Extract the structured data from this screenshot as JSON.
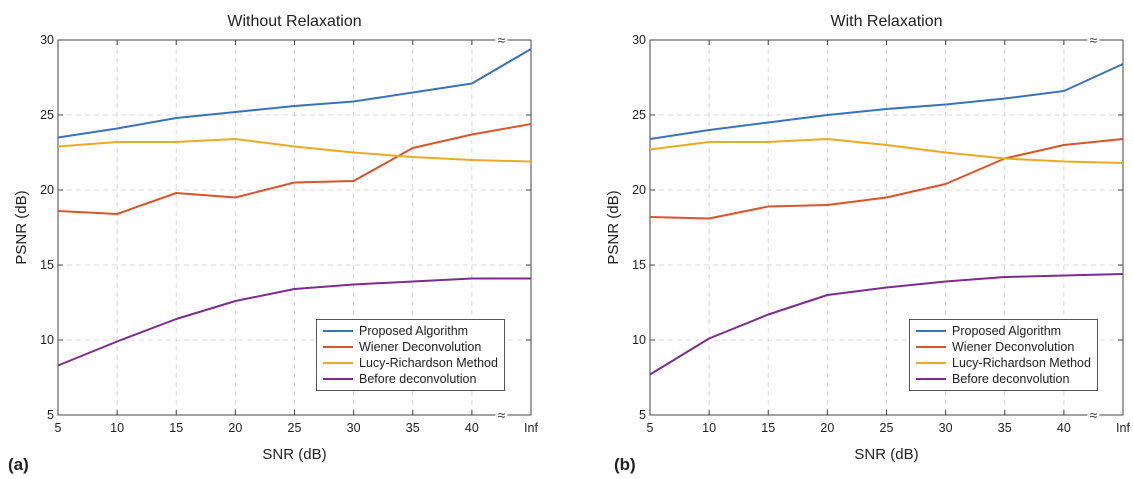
{
  "chart_data": [
    {
      "type": "line",
      "panel_label": "(a)",
      "title": "Without Relaxation",
      "xlabel": "SNR (dB)",
      "ylabel": "PSNR (dB)",
      "categories": [
        "5",
        "10",
        "15",
        "20",
        "25",
        "30",
        "35",
        "40",
        "Inf"
      ],
      "ylim": [
        5,
        30
      ],
      "yticks": [
        "5",
        "10",
        "15",
        "20",
        "25",
        "30"
      ],
      "grid": true,
      "axis_break_marker": "≈",
      "legend_position": "bottom-right",
      "series": [
        {
          "name": "Proposed Algorithm",
          "color": "#3a73b9",
          "values": [
            23.5,
            24.1,
            24.8,
            25.2,
            25.6,
            25.9,
            26.5,
            27.1,
            29.4
          ]
        },
        {
          "name": "Wiener Deconvolution",
          "color": "#d9532b",
          "values": [
            18.6,
            18.4,
            19.8,
            19.5,
            20.5,
            20.6,
            22.8,
            23.7,
            24.4
          ]
        },
        {
          "name": "Lucy-Richardson Method",
          "color": "#ebaa25",
          "values": [
            22.9,
            23.2,
            23.2,
            23.4,
            22.9,
            22.5,
            22.2,
            22.0,
            21.9
          ]
        },
        {
          "name": "Before deconvolution",
          "color": "#7b2c8f",
          "values": [
            8.3,
            9.9,
            11.4,
            12.6,
            13.4,
            13.7,
            13.9,
            14.1,
            14.1
          ]
        }
      ]
    },
    {
      "type": "line",
      "panel_label": "(b)",
      "title": "With Relaxation",
      "xlabel": "SNR (dB)",
      "ylabel": "PSNR (dB)",
      "categories": [
        "5",
        "10",
        "15",
        "20",
        "25",
        "30",
        "35",
        "40",
        "Inf"
      ],
      "ylim": [
        5,
        30
      ],
      "yticks": [
        "5",
        "10",
        "15",
        "20",
        "25",
        "30"
      ],
      "grid": true,
      "axis_break_marker": "≈",
      "legend_position": "bottom-right",
      "series": [
        {
          "name": "Proposed Algorithm",
          "color": "#3a73b9",
          "values": [
            23.4,
            24.0,
            24.5,
            25.0,
            25.4,
            25.7,
            26.1,
            26.6,
            28.4
          ]
        },
        {
          "name": "Wiener Deconvolution",
          "color": "#d9532b",
          "values": [
            18.2,
            18.1,
            18.9,
            19.0,
            19.5,
            20.4,
            22.1,
            23.0,
            23.4
          ]
        },
        {
          "name": "Lucy-Richardson Method",
          "color": "#ebaa25",
          "values": [
            22.7,
            23.2,
            23.2,
            23.4,
            23.0,
            22.5,
            22.1,
            21.9,
            21.8
          ]
        },
        {
          "name": "Before deconvolution",
          "color": "#7b2c8f",
          "values": [
            7.7,
            10.1,
            11.7,
            13.0,
            13.5,
            13.9,
            14.2,
            14.3,
            14.4
          ]
        }
      ]
    }
  ]
}
